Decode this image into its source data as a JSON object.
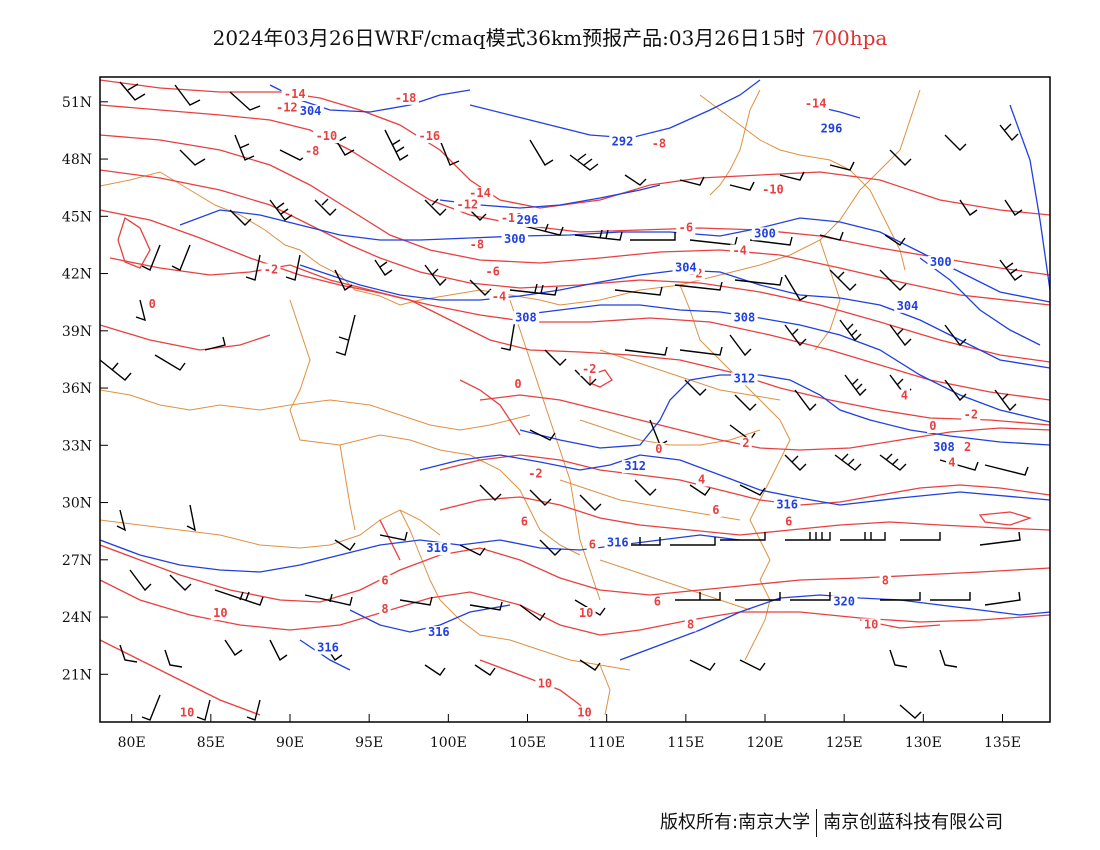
{
  "title": {
    "main": "2024年03月26日WRF/cmaq模式36km预报产品:03月26日15时",
    "level": "700hpa"
  },
  "map": {
    "lon_labels": [
      "80E",
      "85E",
      "90E",
      "95E",
      "100E",
      "105E",
      "110E",
      "115E",
      "120E",
      "125E",
      "130E",
      "135E"
    ],
    "lat_labels": [
      "51N",
      "48N",
      "45N",
      "42N",
      "39N",
      "36N",
      "33N",
      "30N",
      "27N",
      "24N",
      "21N"
    ],
    "lon_values": [
      80,
      85,
      90,
      95,
      100,
      105,
      110,
      115,
      120,
      125,
      130,
      135
    ],
    "lat_values": [
      51,
      48,
      45,
      42,
      39,
      36,
      33,
      30,
      27,
      24,
      21
    ],
    "extent": {
      "lon": [
        78,
        138
      ],
      "lat": [
        18.5,
        52.3
      ]
    },
    "colors": {
      "temperature": "#e84040",
      "height": "#2040e0",
      "border": "#e09040",
      "wind": "#000000"
    },
    "temperature_labels": [
      {
        "text": "-14",
        "lon": 90.3,
        "lat": 51.2
      },
      {
        "text": "-12",
        "lon": 89.8,
        "lat": 50.5
      },
      {
        "text": "-10",
        "lon": 92.3,
        "lat": 49.0
      },
      {
        "text": "-8",
        "lon": 91.4,
        "lat": 48.2
      },
      {
        "text": "-18",
        "lon": 97.3,
        "lat": 51.0
      },
      {
        "text": "-16",
        "lon": 98.8,
        "lat": 49.0
      },
      {
        "text": "-14",
        "lon": 102.0,
        "lat": 46.0
      },
      {
        "text": "-12",
        "lon": 101.2,
        "lat": 45.4
      },
      {
        "text": "-10",
        "lon": 104.0,
        "lat": 44.7
      },
      {
        "text": "-8",
        "lon": 101.8,
        "lat": 43.3
      },
      {
        "text": "-6",
        "lon": 102.8,
        "lat": 41.9
      },
      {
        "text": "-4",
        "lon": 103.2,
        "lat": 40.6
      },
      {
        "text": "-2",
        "lon": 88.8,
        "lat": 42.0
      },
      {
        "text": "0",
        "lon": 81.3,
        "lat": 40.2
      },
      {
        "text": "-8",
        "lon": 113.3,
        "lat": 48.6
      },
      {
        "text": "-6",
        "lon": 115.0,
        "lat": 44.2
      },
      {
        "text": "-4",
        "lon": 118.4,
        "lat": 43.0
      },
      {
        "text": "-2",
        "lon": 115.6,
        "lat": 41.8
      },
      {
        "text": "-14",
        "lon": 123.2,
        "lat": 50.7
      },
      {
        "text": "-10",
        "lon": 120.5,
        "lat": 46.2
      },
      {
        "text": "-2",
        "lon": 108.9,
        "lat": 36.8
      },
      {
        "text": "0",
        "lon": 104.4,
        "lat": 36.0
      },
      {
        "text": "0",
        "lon": 113.3,
        "lat": 32.6
      },
      {
        "text": "2",
        "lon": 118.8,
        "lat": 32.9
      },
      {
        "text": "-2",
        "lon": 105.5,
        "lat": 31.3
      },
      {
        "text": "4",
        "lon": 116.0,
        "lat": 31.0
      },
      {
        "text": "6",
        "lon": 116.9,
        "lat": 29.4
      },
      {
        "text": "6",
        "lon": 121.5,
        "lat": 28.8
      },
      {
        "text": "6",
        "lon": 104.8,
        "lat": 28.8
      },
      {
        "text": "6",
        "lon": 109.1,
        "lat": 27.6
      },
      {
        "text": "6",
        "lon": 96.0,
        "lat": 25.7
      },
      {
        "text": "8",
        "lon": 96.0,
        "lat": 24.2
      },
      {
        "text": "10",
        "lon": 85.6,
        "lat": 24.0
      },
      {
        "text": "10",
        "lon": 108.7,
        "lat": 24.0
      },
      {
        "text": "8",
        "lon": 115.3,
        "lat": 23.4
      },
      {
        "text": "6",
        "lon": 113.2,
        "lat": 24.6
      },
      {
        "text": "8",
        "lon": 127.6,
        "lat": 25.7
      },
      {
        "text": "10",
        "lon": 126.7,
        "lat": 23.4
      },
      {
        "text": "10",
        "lon": 106.1,
        "lat": 20.3
      },
      {
        "text": "10",
        "lon": 83.5,
        "lat": 18.8
      },
      {
        "text": "10",
        "lon": 108.6,
        "lat": 18.8
      },
      {
        "text": "4",
        "lon": 128.8,
        "lat": 35.4
      },
      {
        "text": "0",
        "lon": 130.6,
        "lat": 33.8
      },
      {
        "text": "-2",
        "lon": 133.0,
        "lat": 34.4
      },
      {
        "text": "2",
        "lon": 132.8,
        "lat": 32.7
      },
      {
        "text": "4",
        "lon": 131.8,
        "lat": 31.9
      }
    ],
    "height_labels": [
      {
        "text": "304",
        "lon": 91.3,
        "lat": 50.3
      },
      {
        "text": "292",
        "lon": 111.0,
        "lat": 48.7
      },
      {
        "text": "296",
        "lon": 105.0,
        "lat": 44.6
      },
      {
        "text": "300",
        "lon": 104.2,
        "lat": 43.6
      },
      {
        "text": "296",
        "lon": 124.2,
        "lat": 49.4
      },
      {
        "text": "300",
        "lon": 120.0,
        "lat": 43.9
      },
      {
        "text": "300",
        "lon": 131.1,
        "lat": 42.4
      },
      {
        "text": "304",
        "lon": 115.0,
        "lat": 42.1
      },
      {
        "text": "304",
        "lon": 129.0,
        "lat": 40.1
      },
      {
        "text": "308",
        "lon": 104.9,
        "lat": 39.5
      },
      {
        "text": "308",
        "lon": 118.7,
        "lat": 39.5
      },
      {
        "text": "312",
        "lon": 118.7,
        "lat": 36.3
      },
      {
        "text": "308",
        "lon": 131.3,
        "lat": 32.7
      },
      {
        "text": "312",
        "lon": 111.8,
        "lat": 31.7
      },
      {
        "text": "316",
        "lon": 121.4,
        "lat": 29.7
      },
      {
        "text": "316",
        "lon": 110.7,
        "lat": 27.7
      },
      {
        "text": "316",
        "lon": 99.3,
        "lat": 27.4
      },
      {
        "text": "320",
        "lon": 125.0,
        "lat": 24.6
      },
      {
        "text": "316",
        "lon": 92.4,
        "lat": 22.2
      },
      {
        "text": "316",
        "lon": 99.4,
        "lat": 23.0
      }
    ]
  },
  "footer": {
    "left": "版权所有:南京大学",
    "right": "南京创蓝科技有限公司"
  }
}
